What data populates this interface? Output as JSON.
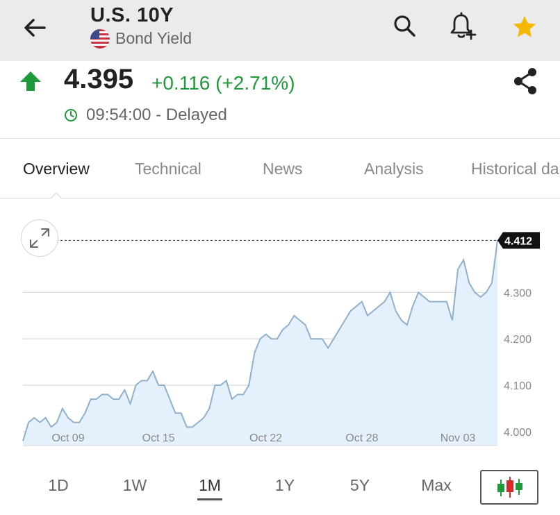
{
  "header": {
    "back_icon": "arrow-left-icon",
    "title": "U.S. 10Y",
    "flag_icon": "us-flag-icon",
    "subtitle": "Bond Yield",
    "actions": [
      "search-icon",
      "bell-plus-icon",
      "star-icon"
    ],
    "star_color": "#f5b800"
  },
  "quote": {
    "direction_icon": "up-arrow-icon",
    "price": "4.395",
    "change": "+0.116 (+2.71%)",
    "time": "09:54:00 - Delayed",
    "up_color": "#1f9a3a"
  },
  "tabs": [
    {
      "label": "Overview",
      "active": true
    },
    {
      "label": "Technical",
      "active": false
    },
    {
      "label": "News",
      "active": false
    },
    {
      "label": "Analysis",
      "active": false
    },
    {
      "label": "Historical da",
      "active": false
    }
  ],
  "chart_data": {
    "type": "area",
    "current_label": "4.412",
    "ylim": [
      3.97,
      4.42
    ],
    "y_ticks": [
      "4.000",
      "4.100",
      "4.200",
      "4.300"
    ],
    "x_ticks": [
      "Oct 09",
      "Oct 15",
      "Oct 22",
      "Oct 28",
      "Nov 03"
    ],
    "line_color": "#8fb0cc",
    "fill_color": "#e4f1fc",
    "series": [
      {
        "x": [
          "Oct 06",
          "Oct 06",
          "Oct 07",
          "Oct 07",
          "Oct 07",
          "Oct 08",
          "Oct 08",
          "Oct 08",
          "Oct 09",
          "Oct 09",
          "Oct 10",
          "Oct 10",
          "Oct 10",
          "Oct 11",
          "Oct 11",
          "Oct 11",
          "Oct 12",
          "Oct 12",
          "Oct 12",
          "Oct 13",
          "Oct 13",
          "Oct 14",
          "Oct 14",
          "Oct 14",
          "Oct 15",
          "Oct 15",
          "Oct 15",
          "Oct 16",
          "Oct 16",
          "Oct 16",
          "Oct 17",
          "Oct 17",
          "Oct 18",
          "Oct 18",
          "Oct 18",
          "Oct 19",
          "Oct 19",
          "Oct 19",
          "Oct 20",
          "Oct 20",
          "Oct 20",
          "Oct 21",
          "Oct 21",
          "Oct 22",
          "Oct 22",
          "Oct 22",
          "Oct 23",
          "Oct 23",
          "Oct 23",
          "Oct 24",
          "Oct 24",
          "Oct 24",
          "Oct 25",
          "Oct 25",
          "Oct 26",
          "Oct 26",
          "Oct 26",
          "Oct 27",
          "Oct 27",
          "Oct 27",
          "Oct 28",
          "Oct 28",
          "Oct 28",
          "Oct 29",
          "Oct 29",
          "Oct 29",
          "Oct 30",
          "Oct 30",
          "Oct 31",
          "Oct 31",
          "Oct 31",
          "Nov 01",
          "Nov 01",
          "Nov 01",
          "Nov 02",
          "Nov 02",
          "Nov 02",
          "Nov 03",
          "Nov 03",
          "Nov 04",
          "Nov 04",
          "Nov 04",
          "Nov 05",
          "Nov 05",
          "Nov 05"
        ],
        "y": [
          3.98,
          4.02,
          4.03,
          4.02,
          4.03,
          4.01,
          4.02,
          4.05,
          4.03,
          4.02,
          4.02,
          4.04,
          4.07,
          4.07,
          4.08,
          4.08,
          4.07,
          4.07,
          4.09,
          4.06,
          4.1,
          4.11,
          4.11,
          4.13,
          4.1,
          4.1,
          4.07,
          4.04,
          4.04,
          4.01,
          4.01,
          4.02,
          4.03,
          4.05,
          4.1,
          4.1,
          4.11,
          4.07,
          4.08,
          4.08,
          4.1,
          4.17,
          4.2,
          4.21,
          4.2,
          4.2,
          4.22,
          4.23,
          4.25,
          4.24,
          4.23,
          4.2,
          4.2,
          4.2,
          4.18,
          4.2,
          4.22,
          4.24,
          4.26,
          4.27,
          4.28,
          4.25,
          4.26,
          4.27,
          4.28,
          4.3,
          4.26,
          4.24,
          4.23,
          4.27,
          4.3,
          4.29,
          4.28,
          4.28,
          4.28,
          4.28,
          4.24,
          4.35,
          4.37,
          4.32,
          4.3,
          4.29,
          4.3,
          4.32,
          4.412
        ]
      }
    ]
  },
  "ranges": [
    {
      "label": "1D",
      "active": false
    },
    {
      "label": "1W",
      "active": false
    },
    {
      "label": "1M",
      "active": true
    },
    {
      "label": "1Y",
      "active": false
    },
    {
      "label": "5Y",
      "active": false
    },
    {
      "label": "Max",
      "active": false
    }
  ],
  "candle_icon": "candlestick-chart-icon",
  "share_icon": "share-icon",
  "expand_icon": "expand-icon",
  "clock_icon": "clock-icon"
}
